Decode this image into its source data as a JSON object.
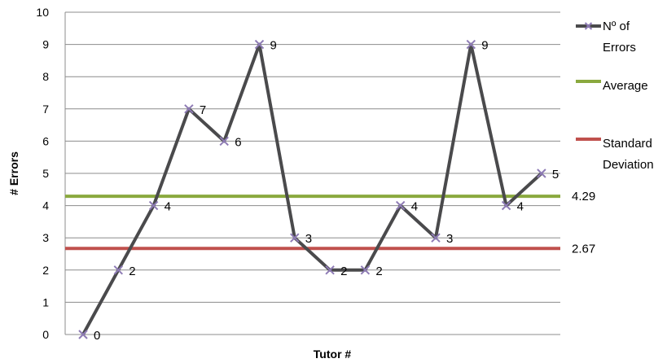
{
  "chart_data": {
    "type": "line",
    "xlabel": "Tutor #",
    "ylabel": "# Errors",
    "ylim": [
      0,
      10
    ],
    "yticks": [
      "0",
      "1",
      "2",
      "3",
      "4",
      "5",
      "6",
      "7",
      "8",
      "9",
      "10"
    ],
    "grid": "horizontal",
    "legend_position": "right",
    "series": [
      {
        "name": "Nº of Errors",
        "color": "#4a4a4c",
        "marker": "x",
        "marker_color": "#8e7bb5",
        "values": [
          0,
          2,
          4,
          7,
          6,
          9,
          3,
          2,
          2,
          4,
          3,
          9,
          4,
          5
        ],
        "labels": [
          "0",
          "2",
          "4",
          "7",
          "6",
          "9",
          "3",
          "2",
          "2",
          "4",
          "3",
          "9",
          "4",
          "5"
        ]
      }
    ],
    "reference_lines": [
      {
        "name": "Average",
        "value": 4.29,
        "label": "4.29",
        "color": "#8aa93e"
      },
      {
        "name": "Standard Deviation",
        "value": 2.67,
        "label": "2.67",
        "color": "#c0504d"
      }
    ],
    "legend": [
      {
        "label_lines": [
          "Nº of",
          "Errors"
        ],
        "color": "#4a4a4c"
      },
      {
        "label_lines": [
          "Average"
        ],
        "color": "#8aa93e"
      },
      {
        "label_lines": [
          "Standard",
          "Deviation"
        ],
        "color": "#c0504d"
      }
    ]
  }
}
